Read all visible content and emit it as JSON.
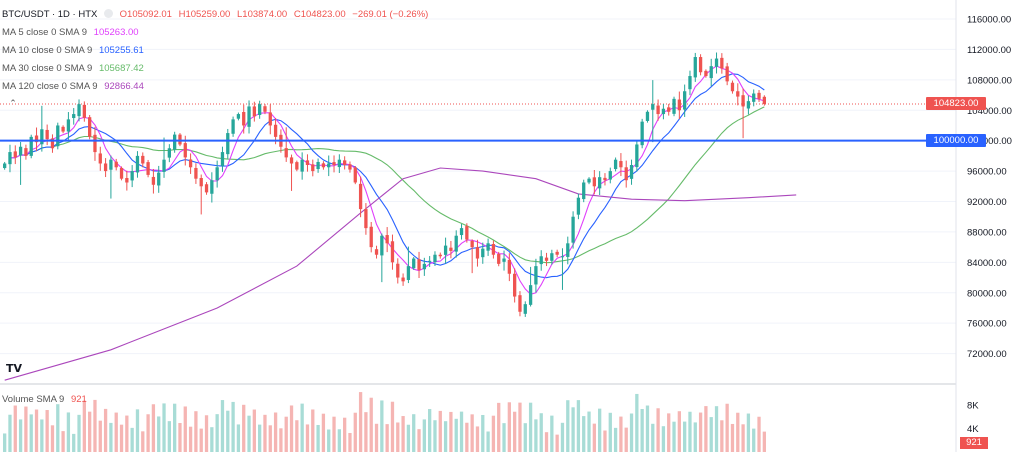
{
  "header": {
    "symbol": "BTC/USDT · 1D · HTX",
    "open": "O105092.01",
    "high": "H105259.00",
    "low": "L103874.00",
    "close": "C104823.00",
    "change": "−269.01 (−0.26%)"
  },
  "indicators": [
    {
      "label": "MA 5 close 0 SMA 9",
      "value": "105263.00",
      "color": "#e040fb"
    },
    {
      "label": "MA 10 close 0 SMA 9",
      "value": "105255.61",
      "color": "#2962ff"
    },
    {
      "label": "MA 30 close 0 SMA 9",
      "value": "105687.42",
      "color": "#66bb6a"
    },
    {
      "label": "MA 120 close 0 SMA 9",
      "value": "92866.44",
      "color": "#ab47bc"
    }
  ],
  "volume_indicator": {
    "label": "Volume SMA 9",
    "value": "921"
  },
  "tags": {
    "last_price": "104823.00",
    "level": "100000.00",
    "volume": "921"
  },
  "colors": {
    "up": "#26a69a",
    "down": "#ef5350",
    "level_line": "#2962ff",
    "ma5": "#e040fb",
    "ma10": "#2962ff",
    "ma30": "#66bb6a",
    "ma120": "#ab47bc"
  },
  "chart_data": {
    "type": "candlestick",
    "title": "BTC/USDT · 1D · HTX",
    "y_axis": {
      "ticks": [
        116000,
        112000,
        108000,
        104000,
        100000,
        96000,
        92000,
        88000,
        84000,
        80000,
        76000,
        72000
      ],
      "tick_labels": [
        "116000.00",
        "112000.00",
        "108000.00",
        "104000.00",
        "100000.00",
        "96000.00",
        "92000.00",
        "88000.00",
        "84000.00",
        "80000.00",
        "76000.00",
        "72000.00"
      ],
      "range": [
        68000,
        118500
      ]
    },
    "volume_axis": {
      "ticks": [
        8000,
        4000
      ],
      "tick_labels": [
        "8K",
        "4K"
      ],
      "range": [
        0,
        10500
      ]
    },
    "horizontal_line": 100000,
    "last_price": 104823,
    "closes": [
      97000,
      98500,
      97800,
      99200,
      98000,
      100500,
      99800,
      101500,
      100200,
      99000,
      102000,
      101200,
      102800,
      103500,
      104800,
      103000,
      100500,
      98500,
      97000,
      96000,
      97500,
      96500,
      95000,
      94500,
      96000,
      98000,
      97000,
      95500,
      94200,
      95800,
      97500,
      99000,
      100800,
      99500,
      97800,
      96500,
      95000,
      94000,
      93200,
      94800,
      96500,
      98500,
      101000,
      102800,
      103500,
      102000,
      104500,
      103200,
      104800,
      103800,
      102000,
      100500,
      99200,
      97800,
      97000,
      96200,
      97500,
      96800,
      96000,
      97200,
      96500,
      97000,
      96800,
      97500,
      96800,
      96200,
      94500,
      91000,
      88500,
      86000,
      85000,
      87500,
      86500,
      84000,
      82000,
      81500,
      83500,
      84500,
      83000,
      83800,
      84200,
      85000,
      84800,
      86200,
      85500,
      87500,
      88500,
      87000,
      86000,
      84500,
      85800,
      86500,
      85000,
      83800,
      84500,
      82500,
      79500,
      77500,
      78500,
      81000,
      83500,
      84800,
      84200,
      85200,
      85000,
      84800,
      86500,
      90000,
      92500,
      94500,
      95000,
      94000,
      95200,
      94800,
      96000,
      97500,
      96500,
      94800,
      96800,
      99500,
      102500,
      103800,
      104800,
      103500,
      104200,
      103800,
      105500,
      104000,
      106500,
      108500,
      111000,
      109000,
      108500,
      109800,
      110800,
      109500,
      107800,
      106500,
      105800,
      104500,
      105200,
      106200,
      105500,
      104823
    ],
    "ma120_points": [
      [
        0,
        68500
      ],
      [
        20,
        72500
      ],
      [
        40,
        78000
      ],
      [
        55,
        83500
      ],
      [
        67,
        90500
      ],
      [
        75,
        95000
      ],
      [
        82,
        96400
      ],
      [
        90,
        96000
      ],
      [
        100,
        95000
      ],
      [
        108,
        93000
      ],
      [
        118,
        92300
      ],
      [
        128,
        92100
      ],
      [
        140,
        92500
      ],
      [
        149,
        92866
      ]
    ],
    "indicators": [
      "MA 5 close 0 SMA 9: 105263.00",
      "MA 10 close 0 SMA 9: 105255.61",
      "MA 30 close 0 SMA 9: 105687.42",
      "MA 120 close 0 SMA 9: 92866.44"
    ]
  }
}
